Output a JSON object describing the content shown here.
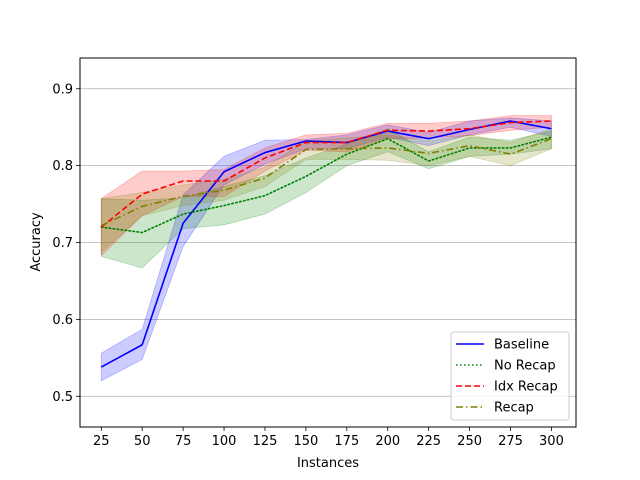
{
  "chart_data": {
    "type": "line",
    "title": "",
    "xlabel": "Instances",
    "ylabel": "Accuracy",
    "x": [
      25,
      50,
      75,
      100,
      125,
      150,
      175,
      200,
      225,
      250,
      275,
      300
    ],
    "x_tick_labels": [
      "25",
      "50",
      "75",
      "100",
      "125",
      "150",
      "175",
      "200",
      "225",
      "250",
      "275",
      "300"
    ],
    "xlim": [
      12,
      315
    ],
    "ylim": [
      0.46,
      0.94
    ],
    "y_ticks": [
      0.5,
      0.6,
      0.7,
      0.8,
      0.9
    ],
    "y_tick_labels": [
      "0.5",
      "0.6",
      "0.7",
      "0.8",
      "0.9"
    ],
    "grid": "horizontal",
    "legend_position": "bottom-right",
    "series": [
      {
        "name": "Baseline",
        "color": "#0000ff",
        "style": "solid",
        "values": [
          0.538,
          0.567,
          0.725,
          0.792,
          0.817,
          0.832,
          0.83,
          0.845,
          0.835,
          0.847,
          0.858,
          0.848
        ],
        "lower": [
          0.52,
          0.548,
          0.695,
          0.775,
          0.802,
          0.822,
          0.822,
          0.837,
          0.826,
          0.84,
          0.85,
          0.838
        ],
        "upper": [
          0.556,
          0.587,
          0.762,
          0.812,
          0.833,
          0.834,
          0.84,
          0.853,
          0.843,
          0.858,
          0.862,
          0.858
        ]
      },
      {
        "name": "No Recap",
        "color": "#008000",
        "style": "dotted",
        "values": [
          0.72,
          0.713,
          0.737,
          0.748,
          0.761,
          0.786,
          0.815,
          0.835,
          0.806,
          0.823,
          0.823,
          0.837
        ],
        "lower": [
          0.682,
          0.667,
          0.718,
          0.723,
          0.737,
          0.765,
          0.8,
          0.818,
          0.796,
          0.812,
          0.815,
          0.822
        ],
        "upper": [
          0.757,
          0.755,
          0.758,
          0.773,
          0.787,
          0.81,
          0.828,
          0.848,
          0.818,
          0.837,
          0.833,
          0.845
        ]
      },
      {
        "name": "Idx Recap",
        "color": "#ff0000",
        "style": "dashed",
        "values": [
          0.72,
          0.763,
          0.78,
          0.78,
          0.81,
          0.83,
          0.83,
          0.846,
          0.845,
          0.848,
          0.856,
          0.858
        ],
        "lower": [
          0.683,
          0.735,
          0.76,
          0.76,
          0.793,
          0.82,
          0.818,
          0.835,
          0.836,
          0.839,
          0.846,
          0.85
        ],
        "upper": [
          0.757,
          0.793,
          0.793,
          0.795,
          0.823,
          0.84,
          0.842,
          0.855,
          0.855,
          0.858,
          0.865,
          0.865
        ]
      },
      {
        "name": "Recap",
        "color": "#808000",
        "style": "dashdot",
        "values": [
          0.722,
          0.747,
          0.76,
          0.768,
          0.784,
          0.821,
          0.822,
          0.823,
          0.816,
          0.826,
          0.815,
          0.835
        ],
        "lower": [
          0.688,
          0.735,
          0.748,
          0.755,
          0.773,
          0.808,
          0.808,
          0.807,
          0.8,
          0.812,
          0.8,
          0.822
        ],
        "upper": [
          0.757,
          0.765,
          0.775,
          0.782,
          0.798,
          0.832,
          0.836,
          0.84,
          0.832,
          0.84,
          0.83,
          0.848
        ]
      }
    ]
  }
}
